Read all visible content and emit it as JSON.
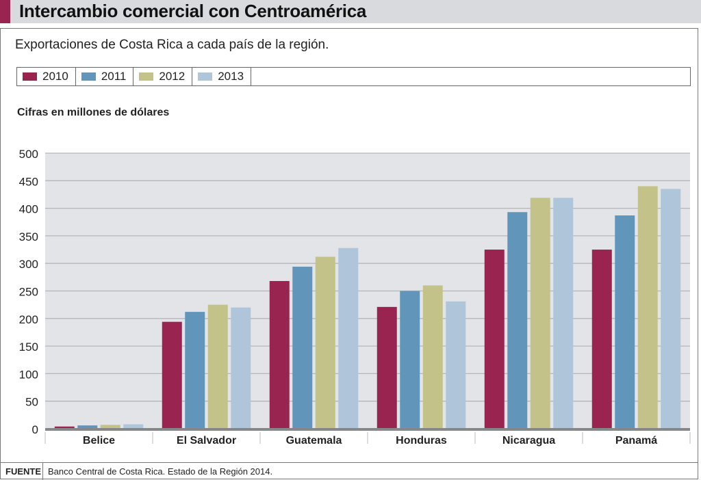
{
  "header": {
    "title": "Intercambio comercial con Centroamérica",
    "accent_color": "#9a2450"
  },
  "subtitle": "Exportaciones de Costa Rica a cada país de la región.",
  "unit_label": "Cifras en millones de dólares",
  "footer": {
    "label": "FUENTE",
    "text": "Banco Central de Costa Rica. Estado de la Región 2014."
  },
  "chart_data": {
    "type": "bar",
    "title": "Intercambio comercial con Centroamérica",
    "subtitle": "Exportaciones de Costa Rica a cada país de la región.",
    "ylabel": "Cifras en millones de dólares",
    "xlabel": "",
    "ylim": [
      0,
      500
    ],
    "yticks": [
      "0",
      "50",
      "100",
      "150",
      "200",
      "250",
      "300",
      "350",
      "400",
      "450",
      "500"
    ],
    "grid": true,
    "legend_position": "top",
    "categories": [
      "Belice",
      "El Salvador",
      "Guatemala",
      "Honduras",
      "Nicaragua",
      "Panamá"
    ],
    "series": [
      {
        "name": "2010",
        "color": "#9a2450",
        "values": [
          4,
          194,
          268,
          221,
          325,
          325
        ]
      },
      {
        "name": "2011",
        "color": "#6295ba",
        "values": [
          6,
          212,
          294,
          250,
          393,
          387
        ]
      },
      {
        "name": "2012",
        "color": "#c3c389",
        "values": [
          7,
          225,
          312,
          260,
          419,
          440
        ]
      },
      {
        "name": "2013",
        "color": "#afc5d9",
        "values": [
          8,
          220,
          328,
          231,
          419,
          435
        ]
      }
    ]
  }
}
